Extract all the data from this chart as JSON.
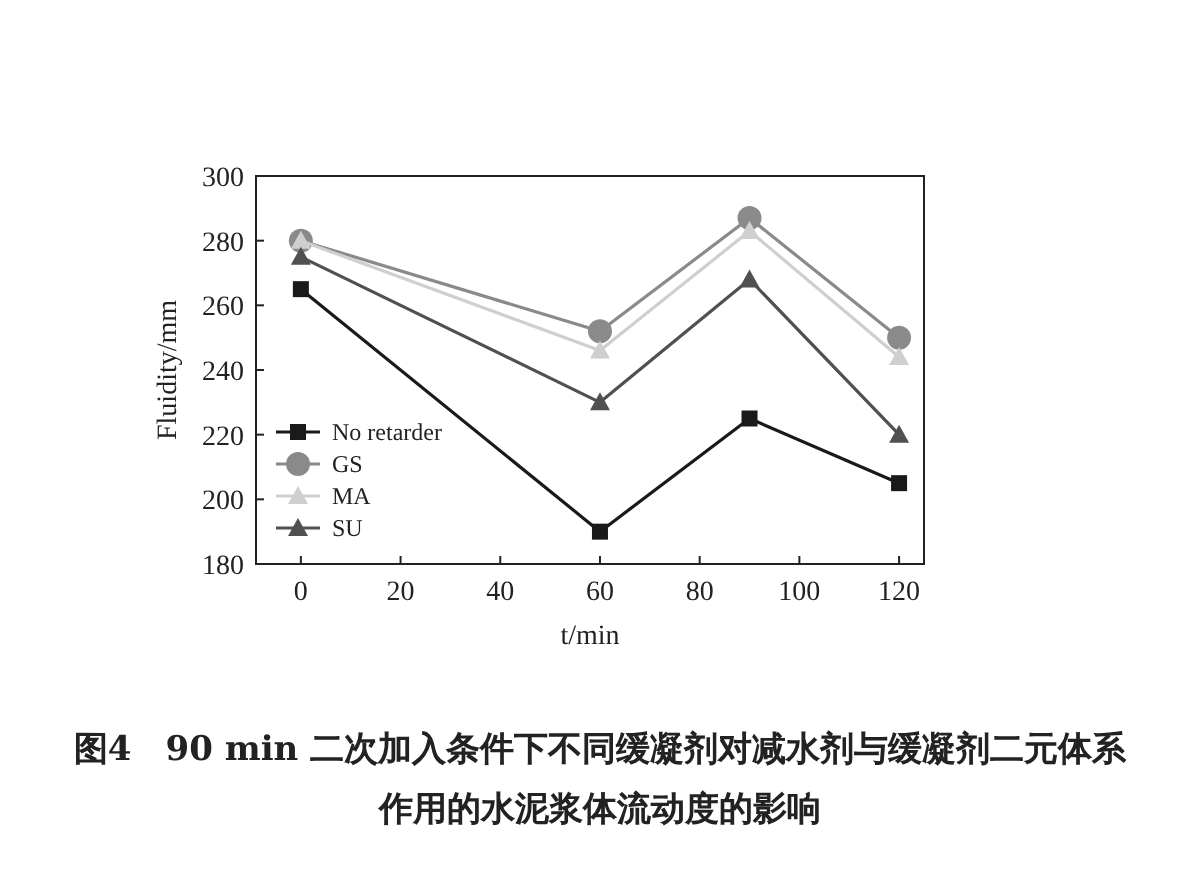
{
  "chart_data": {
    "type": "line",
    "xlabel": "t/min",
    "ylabel": "Fluidity/mm",
    "x": [
      0,
      60,
      90,
      120
    ],
    "series": [
      {
        "name": "No retarder",
        "color": "#1a1a1a",
        "marker": "square",
        "values": [
          265,
          190,
          225,
          205
        ]
      },
      {
        "name": "GS",
        "color": "#8a8a8a",
        "marker": "circle",
        "values": [
          280,
          252,
          287,
          250
        ]
      },
      {
        "name": "MA",
        "color": "#cfcfcf",
        "marker": "triangle",
        "values": [
          280,
          246,
          283,
          244
        ]
      },
      {
        "name": "SU",
        "color": "#505050",
        "marker": "triangle",
        "values": [
          275,
          230,
          268,
          220
        ]
      }
    ],
    "xlim": [
      -9,
      125
    ],
    "ylim": [
      180,
      300
    ],
    "xticks": [
      0,
      20,
      40,
      60,
      80,
      100,
      120
    ],
    "yticks": [
      180,
      200,
      220,
      240,
      260,
      280,
      300
    ],
    "legend": "bottom left",
    "grid": false,
    "annotations": [
      "图4　90 min 二次加入条件下不同缓凝剂对减水剂与缓凝剂二元体系作用的水泥浆体流动度的影响"
    ]
  }
}
